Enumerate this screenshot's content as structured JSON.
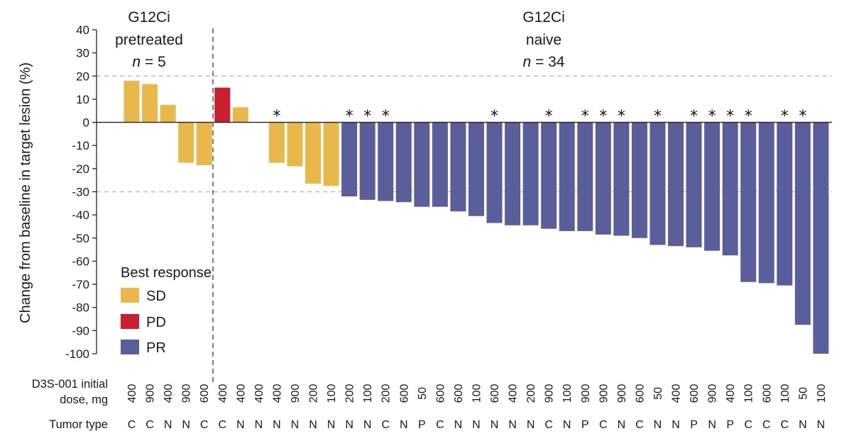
{
  "chart_data": {
    "type": "bar",
    "ylabel": "Change from baseline in target lesion (%)",
    "ylim": [
      -100,
      40
    ],
    "yticks": [
      40,
      30,
      20,
      10,
      0,
      -10,
      -20,
      -30,
      -40,
      -50,
      -60,
      -70,
      -80,
      -90,
      -100
    ],
    "reference_lines": [
      20,
      -30
    ],
    "colors": {
      "SD": "#E8B84A",
      "PD": "#C8202F",
      "PR": "#5A5F9B"
    },
    "groups": [
      {
        "line1": "G12Ci",
        "line2": "pretreated",
        "n_label": "n",
        "n_value": " = 5"
      },
      {
        "line1": "G12Ci",
        "line2": "naive",
        "n_label": "n",
        "n_value": " = 34"
      }
    ],
    "legend": {
      "title": "Best response",
      "items": [
        "SD",
        "PD",
        "PR"
      ]
    },
    "row_labels": {
      "dose_line1": "D3S-001 initial",
      "dose_line2": "dose, mg",
      "tumor": "Tumor type"
    },
    "patients": [
      {
        "value": 18,
        "response": "SD",
        "dose": "400",
        "tumor": "C",
        "star": false
      },
      {
        "value": 16.5,
        "response": "SD",
        "dose": "900",
        "tumor": "C",
        "star": false
      },
      {
        "value": 7.5,
        "response": "SD",
        "dose": "400",
        "tumor": "N",
        "star": false
      },
      {
        "value": -17.5,
        "response": "SD",
        "dose": "900",
        "tumor": "N",
        "star": false
      },
      {
        "value": -18.5,
        "response": "SD",
        "dose": "600",
        "tumor": "C",
        "star": false
      },
      {
        "value": 15,
        "response": "PD",
        "dose": "400",
        "tumor": "C",
        "star": false
      },
      {
        "value": 6.5,
        "response": "SD",
        "dose": "400",
        "tumor": "N",
        "star": false
      },
      {
        "value": 0,
        "response": "SD",
        "dose": "400",
        "tumor": "N",
        "star": false
      },
      {
        "value": -17.5,
        "response": "SD",
        "dose": "400",
        "tumor": "N",
        "star": true
      },
      {
        "value": -19,
        "response": "SD",
        "dose": "900",
        "tumor": "N",
        "star": false
      },
      {
        "value": -26.5,
        "response": "SD",
        "dose": "200",
        "tumor": "N",
        "star": false
      },
      {
        "value": -27.5,
        "response": "SD",
        "dose": "100",
        "tumor": "N",
        "star": false
      },
      {
        "value": -32,
        "response": "PR",
        "dose": "200",
        "tumor": "N",
        "star": true
      },
      {
        "value": -33.5,
        "response": "PR",
        "dose": "100",
        "tumor": "N",
        "star": true
      },
      {
        "value": -34,
        "response": "PR",
        "dose": "200",
        "tumor": "C",
        "star": true
      },
      {
        "value": -34.5,
        "response": "PR",
        "dose": "600",
        "tumor": "N",
        "star": false
      },
      {
        "value": -36.5,
        "response": "PR",
        "dose": "50",
        "tumor": "P",
        "star": false
      },
      {
        "value": -36.5,
        "response": "PR",
        "dose": "600",
        "tumor": "C",
        "star": false
      },
      {
        "value": -38.5,
        "response": "PR",
        "dose": "600",
        "tumor": "N",
        "star": false
      },
      {
        "value": -40.5,
        "response": "PR",
        "dose": "100",
        "tumor": "N",
        "star": false
      },
      {
        "value": -43.5,
        "response": "PR",
        "dose": "600",
        "tumor": "N",
        "star": true
      },
      {
        "value": -44.5,
        "response": "PR",
        "dose": "400",
        "tumor": "N",
        "star": false
      },
      {
        "value": -44.5,
        "response": "PR",
        "dose": "200",
        "tumor": "N",
        "star": false
      },
      {
        "value": -46,
        "response": "PR",
        "dose": "900",
        "tumor": "C",
        "star": true
      },
      {
        "value": -47,
        "response": "PR",
        "dose": "100",
        "tumor": "N",
        "star": false
      },
      {
        "value": -47,
        "response": "PR",
        "dose": "900",
        "tumor": "P",
        "star": true
      },
      {
        "value": -48.5,
        "response": "PR",
        "dose": "900",
        "tumor": "C",
        "star": true
      },
      {
        "value": -49,
        "response": "PR",
        "dose": "900",
        "tumor": "N",
        "star": true
      },
      {
        "value": -50,
        "response": "PR",
        "dose": "600",
        "tumor": "C",
        "star": false
      },
      {
        "value": -53,
        "response": "PR",
        "dose": "50",
        "tumor": "N",
        "star": true
      },
      {
        "value": -53.5,
        "response": "PR",
        "dose": "400",
        "tumor": "N",
        "star": false
      },
      {
        "value": -54,
        "response": "PR",
        "dose": "600",
        "tumor": "P",
        "star": true
      },
      {
        "value": -55.5,
        "response": "PR",
        "dose": "900",
        "tumor": "N",
        "star": true
      },
      {
        "value": -57.5,
        "response": "PR",
        "dose": "400",
        "tumor": "P",
        "star": true
      },
      {
        "value": -69,
        "response": "PR",
        "dose": "100",
        "tumor": "C",
        "star": true
      },
      {
        "value": -69.5,
        "response": "PR",
        "dose": "600",
        "tumor": "C",
        "star": false
      },
      {
        "value": -70.5,
        "response": "PR",
        "dose": "100",
        "tumor": "C",
        "star": true
      },
      {
        "value": -87.5,
        "response": "PR",
        "dose": "50",
        "tumor": "N",
        "star": true
      },
      {
        "value": -100,
        "response": "PR",
        "dose": "100",
        "tumor": "N",
        "star": false
      }
    ]
  }
}
